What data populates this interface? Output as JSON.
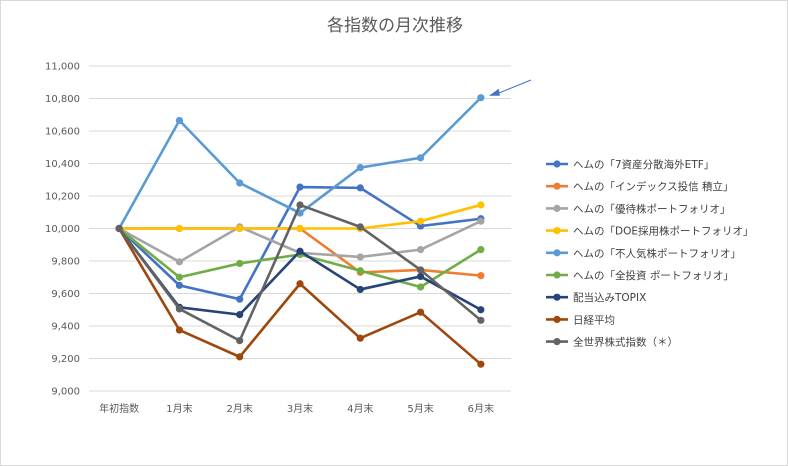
{
  "chart_data": {
    "type": "line",
    "title": "各指数の月次推移",
    "xlabel": "",
    "ylabel": "",
    "categories": [
      "年初指数",
      "1月末",
      "2月末",
      "3月末",
      "4月末",
      "5月末",
      "6月末"
    ],
    "ylim": [
      9000,
      11000
    ],
    "yticks": [
      "9,000",
      "9,200",
      "9,400",
      "9,600",
      "9,800",
      "10,000",
      "10,200",
      "10,400",
      "10,600",
      "10,800",
      "11,000"
    ],
    "grid": true,
    "legend_position": "right",
    "annotation": "arrow pointing at the final point of 「不人気株ポートフォリオ」",
    "series": [
      {
        "name": "ヘムの「7資産分散海外ETF」",
        "color": "#4472C4",
        "values": [
          10000,
          9650,
          9565,
          10255,
          10250,
          10015,
          10060
        ]
      },
      {
        "name": "ヘムの「インデックス投信 積立」",
        "color": "#ED7D31",
        "values": [
          10000,
          10000,
          10000,
          10000,
          9730,
          9745,
          9710
        ]
      },
      {
        "name": "ヘムの「優待株ポートフォリオ」",
        "color": "#A5A5A5",
        "values": [
          10000,
          9795,
          10010,
          9850,
          9825,
          9870,
          10045
        ]
      },
      {
        "name": "ヘムの「DOE採用株ポートフォリオ」",
        "color": "#FFC000",
        "values": [
          10000,
          10000,
          10000,
          10000,
          10000,
          10045,
          10145
        ]
      },
      {
        "name": "ヘムの「不人気株ポートフォリオ」",
        "color": "#5B9BD5",
        "values": [
          10000,
          10665,
          10280,
          10095,
          10375,
          10435,
          10805
        ]
      },
      {
        "name": "ヘムの「全投資 ポートフォリオ」",
        "color": "#70AD47",
        "values": [
          10000,
          9700,
          9785,
          9840,
          9740,
          9640,
          9870
        ]
      },
      {
        "name": "配当込みTOPIX",
        "color": "#264478",
        "values": [
          10000,
          9515,
          9470,
          9860,
          9625,
          9705,
          9500
        ]
      },
      {
        "name": "日経平均",
        "color": "#9E480E",
        "values": [
          10000,
          9375,
          9210,
          9660,
          9325,
          9485,
          9165
        ]
      },
      {
        "name": "全世界株式指数（＊）",
        "color": "#636363",
        "values": [
          10000,
          9505,
          9310,
          10145,
          10010,
          9745,
          9435
        ]
      }
    ]
  }
}
